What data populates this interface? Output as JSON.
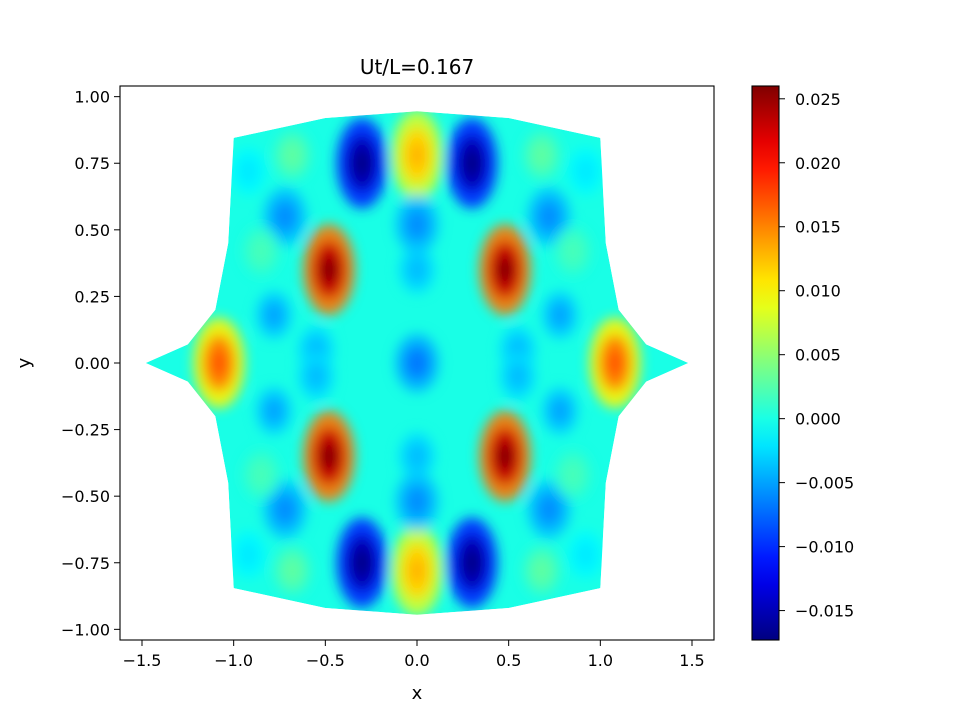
{
  "chart_data": {
    "type": "heatmap",
    "title": "Ut/L=0.167",
    "xlabel": "x",
    "ylabel": "y",
    "xlim": [
      -1.62,
      1.62
    ],
    "ylim": [
      -1.04,
      1.04
    ],
    "x_ticks": [
      -1.5,
      -1.0,
      -0.5,
      0.0,
      0.5,
      1.0,
      1.5
    ],
    "x_tick_labels": [
      "−1.5",
      "−1.0",
      "−0.5",
      "0.0",
      "0.5",
      "1.0",
      "1.5"
    ],
    "y_ticks": [
      -1.0,
      -0.75,
      -0.5,
      -0.25,
      0.0,
      0.25,
      0.5,
      0.75,
      1.0
    ],
    "y_tick_labels": [
      "−1.00",
      "−0.75",
      "−0.50",
      "−0.25",
      "0.00",
      "0.25",
      "0.50",
      "0.75",
      "1.00"
    ],
    "colormap": "jet",
    "colorbar": {
      "vmin": -0.0173,
      "vmax": 0.026,
      "ticks": [
        -0.015,
        -0.01,
        -0.005,
        0.0,
        0.005,
        0.01,
        0.015,
        0.02,
        0.025
      ],
      "tick_labels": [
        "−0.015",
        "−0.010",
        "−0.005",
        "0.000",
        "0.005",
        "0.010",
        "0.015",
        "0.020",
        "0.025"
      ]
    },
    "domain_outline": [
      [
        1.0,
        0.845
      ],
      [
        0.5,
        0.92
      ],
      [
        0.0,
        0.945
      ],
      [
        -0.5,
        0.92
      ],
      [
        -1.0,
        0.845
      ],
      [
        -1.03,
        0.45
      ],
      [
        -1.1,
        0.2
      ],
      [
        -1.25,
        0.07
      ],
      [
        -1.48,
        0.0
      ],
      [
        -1.25,
        -0.07
      ],
      [
        -1.1,
        -0.2
      ],
      [
        -1.03,
        -0.45
      ],
      [
        -1.0,
        -0.845
      ],
      [
        -0.5,
        -0.92
      ],
      [
        0.0,
        -0.945
      ],
      [
        0.5,
        -0.92
      ],
      [
        1.0,
        -0.845
      ],
      [
        1.03,
        -0.45
      ],
      [
        1.1,
        -0.2
      ],
      [
        1.25,
        -0.07
      ],
      [
        1.48,
        0.0
      ],
      [
        1.25,
        0.07
      ],
      [
        1.1,
        0.2
      ],
      [
        1.03,
        0.45
      ]
    ],
    "field_features": [
      {
        "x": 0.48,
        "y": 0.35,
        "value": 0.026
      },
      {
        "x": -0.48,
        "y": 0.35,
        "value": 0.026
      },
      {
        "x": 0.48,
        "y": -0.35,
        "value": 0.026
      },
      {
        "x": -0.48,
        "y": -0.35,
        "value": 0.026
      },
      {
        "x": 0.3,
        "y": 0.75,
        "value": -0.017
      },
      {
        "x": -0.3,
        "y": 0.75,
        "value": -0.017
      },
      {
        "x": 0.3,
        "y": -0.75,
        "value": -0.017
      },
      {
        "x": -0.3,
        "y": -0.75,
        "value": -0.017
      },
      {
        "x": 1.08,
        "y": 0.0,
        "value": 0.017
      },
      {
        "x": -1.08,
        "y": 0.0,
        "value": 0.017
      },
      {
        "x": 0.0,
        "y": 0.78,
        "value": 0.013
      },
      {
        "x": 0.0,
        "y": -0.78,
        "value": 0.013
      },
      {
        "x": 0.0,
        "y": 0.0,
        "value": -0.007
      },
      {
        "x": 0.0,
        "y": 0.35,
        "value": -0.004
      },
      {
        "x": 0.0,
        "y": -0.35,
        "value": -0.004
      },
      {
        "x": 0.0,
        "y": 0.52,
        "value": -0.006
      },
      {
        "x": 0.0,
        "y": -0.52,
        "value": -0.006
      },
      {
        "x": 0.72,
        "y": 0.55,
        "value": -0.006
      },
      {
        "x": -0.72,
        "y": 0.55,
        "value": -0.006
      },
      {
        "x": 0.72,
        "y": -0.55,
        "value": -0.006
      },
      {
        "x": -0.72,
        "y": -0.55,
        "value": -0.006
      },
      {
        "x": 0.78,
        "y": 0.18,
        "value": -0.005
      },
      {
        "x": -0.78,
        "y": 0.18,
        "value": -0.005
      },
      {
        "x": 0.78,
        "y": -0.18,
        "value": -0.005
      },
      {
        "x": -0.78,
        "y": -0.18,
        "value": -0.005
      },
      {
        "x": 0.55,
        "y": 0.05,
        "value": -0.004
      },
      {
        "x": -0.55,
        "y": 0.05,
        "value": -0.004
      },
      {
        "x": 0.55,
        "y": -0.05,
        "value": -0.004
      },
      {
        "x": -0.55,
        "y": -0.05,
        "value": -0.004
      },
      {
        "x": 0.68,
        "y": 0.78,
        "value": 0.003
      },
      {
        "x": -0.68,
        "y": 0.78,
        "value": 0.003
      },
      {
        "x": 0.68,
        "y": -0.78,
        "value": 0.003
      },
      {
        "x": -0.68,
        "y": -0.78,
        "value": 0.003
      },
      {
        "x": 0.92,
        "y": 0.72,
        "value": -0.002
      },
      {
        "x": -0.92,
        "y": 0.72,
        "value": -0.002
      },
      {
        "x": 0.92,
        "y": -0.72,
        "value": -0.002
      },
      {
        "x": -0.92,
        "y": -0.72,
        "value": -0.002
      },
      {
        "x": 0.85,
        "y": 0.42,
        "value": 0.002
      },
      {
        "x": -0.85,
        "y": 0.42,
        "value": 0.002
      },
      {
        "x": 0.85,
        "y": -0.42,
        "value": 0.002
      },
      {
        "x": -0.85,
        "y": -0.42,
        "value": 0.002
      }
    ],
    "grid": false,
    "legend": "colorbar-right"
  }
}
